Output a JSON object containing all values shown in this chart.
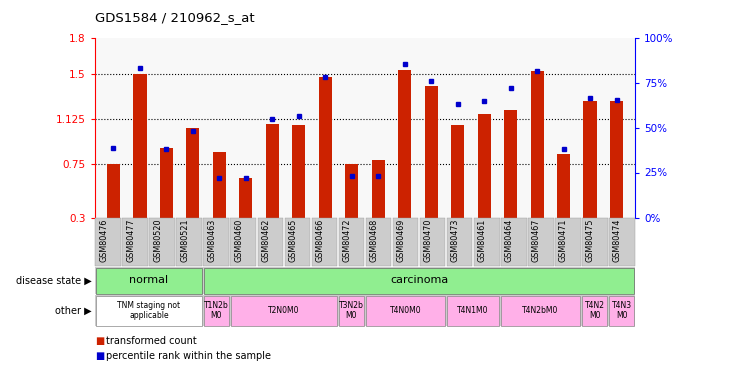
{
  "title": "GDS1584 / 210962_s_at",
  "samples": [
    "GSM80476",
    "GSM80477",
    "GSM80520",
    "GSM80521",
    "GSM80463",
    "GSM80460",
    "GSM80462",
    "GSM80465",
    "GSM80466",
    "GSM80472",
    "GSM80468",
    "GSM80469",
    "GSM80470",
    "GSM80473",
    "GSM80461",
    "GSM80464",
    "GSM80467",
    "GSM80471",
    "GSM80475",
    "GSM80474"
  ],
  "red_values": [
    0.75,
    1.5,
    0.88,
    1.05,
    0.85,
    0.63,
    1.08,
    1.07,
    1.47,
    0.75,
    0.78,
    1.53,
    1.4,
    1.07,
    1.16,
    1.2,
    1.52,
    0.83,
    1.27,
    1.27
  ],
  "blue_values": [
    0.88,
    1.55,
    0.87,
    1.02,
    0.63,
    0.63,
    1.12,
    1.15,
    1.47,
    0.65,
    0.65,
    1.58,
    1.44,
    1.25,
    1.27,
    1.38,
    1.52,
    0.87,
    1.3,
    1.28
  ],
  "ylim_left": [
    0.3,
    1.8
  ],
  "ylim_right": [
    0,
    100
  ],
  "yticks_left": [
    0.3,
    0.75,
    1.125,
    1.5,
    1.8
  ],
  "ytick_labels_left": [
    "0.3",
    "0.75",
    "1.125",
    "1.5",
    "1.8"
  ],
  "yticks_right": [
    0,
    25,
    50,
    75,
    100
  ],
  "ytick_labels_right": [
    "0%",
    "25%",
    "50%",
    "75%",
    "100%"
  ],
  "hlines": [
    0.75,
    1.125,
    1.5
  ],
  "bar_color": "#CC2200",
  "dot_color": "#0000CC",
  "bar_width": 0.5,
  "other_row": [
    {
      "label": "TNM staging not\napplicable",
      "start": 0,
      "end": 4,
      "color": "#ffffff"
    },
    {
      "label": "T1N2b\nM0",
      "start": 4,
      "end": 5,
      "color": "#FFB0E8"
    },
    {
      "label": "T2N0M0",
      "start": 5,
      "end": 9,
      "color": "#FFB0E8"
    },
    {
      "label": "T3N2b\nM0",
      "start": 9,
      "end": 10,
      "color": "#FFB0E8"
    },
    {
      "label": "T4N0M0",
      "start": 10,
      "end": 13,
      "color": "#FFB0E8"
    },
    {
      "label": "T4N1M0",
      "start": 13,
      "end": 15,
      "color": "#FFB0E8"
    },
    {
      "label": "T4N2bM0",
      "start": 15,
      "end": 18,
      "color": "#FFB0E8"
    },
    {
      "label": "T4N2\nM0",
      "start": 18,
      "end": 19,
      "color": "#FFB0E8"
    },
    {
      "label": "T4N3\nM0",
      "start": 19,
      "end": 20,
      "color": "#FFB0E8"
    }
  ],
  "legend_items": [
    {
      "color": "#CC2200",
      "label": "transformed count"
    },
    {
      "color": "#0000CC",
      "label": "percentile rank within the sample"
    }
  ],
  "bg_color": "#ffffff",
  "tick_bg_color": "#cccccc",
  "normal_color": "#90EE90",
  "carcinoma_color": "#90EE90"
}
